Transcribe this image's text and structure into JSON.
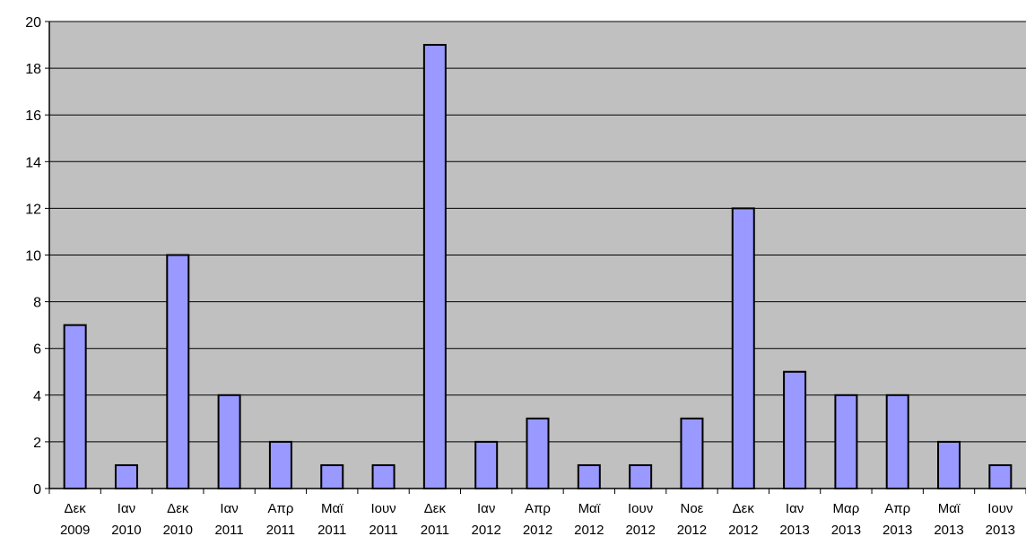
{
  "chart_data": {
    "type": "bar",
    "title": "",
    "xlabel": "",
    "ylabel": "",
    "ylim": [
      0,
      20
    ],
    "ytick_step": 2,
    "grid": true,
    "legend": "none",
    "colors": {
      "plot_background": "#c0c0c0",
      "bar_fill": "#9999ff",
      "bar_stroke": "#000000",
      "gridline": "#000000"
    },
    "categories": [
      [
        "Δεκ",
        "2009"
      ],
      [
        "Ιαν",
        "2010"
      ],
      [
        "Δεκ",
        "2010"
      ],
      [
        "Ιαν",
        "2011"
      ],
      [
        "Απρ",
        "2011"
      ],
      [
        "Μαϊ",
        "2011"
      ],
      [
        "Ιουν",
        "2011"
      ],
      [
        "Δεκ",
        "2011"
      ],
      [
        "Ιαν",
        "2012"
      ],
      [
        "Απρ",
        "2012"
      ],
      [
        "Μαϊ",
        "2012"
      ],
      [
        "Ιουν",
        "2012"
      ],
      [
        "Νοε",
        "2012"
      ],
      [
        "Δεκ",
        "2012"
      ],
      [
        "Ιαν",
        "2013"
      ],
      [
        "Μαρ",
        "2013"
      ],
      [
        "Απρ",
        "2013"
      ],
      [
        "Μαϊ",
        "2013"
      ],
      [
        "Ιουν",
        "2013"
      ]
    ],
    "values": [
      7,
      1,
      10,
      4,
      2,
      1,
      1,
      19,
      2,
      3,
      1,
      1,
      3,
      12,
      5,
      4,
      4,
      2,
      1
    ]
  }
}
